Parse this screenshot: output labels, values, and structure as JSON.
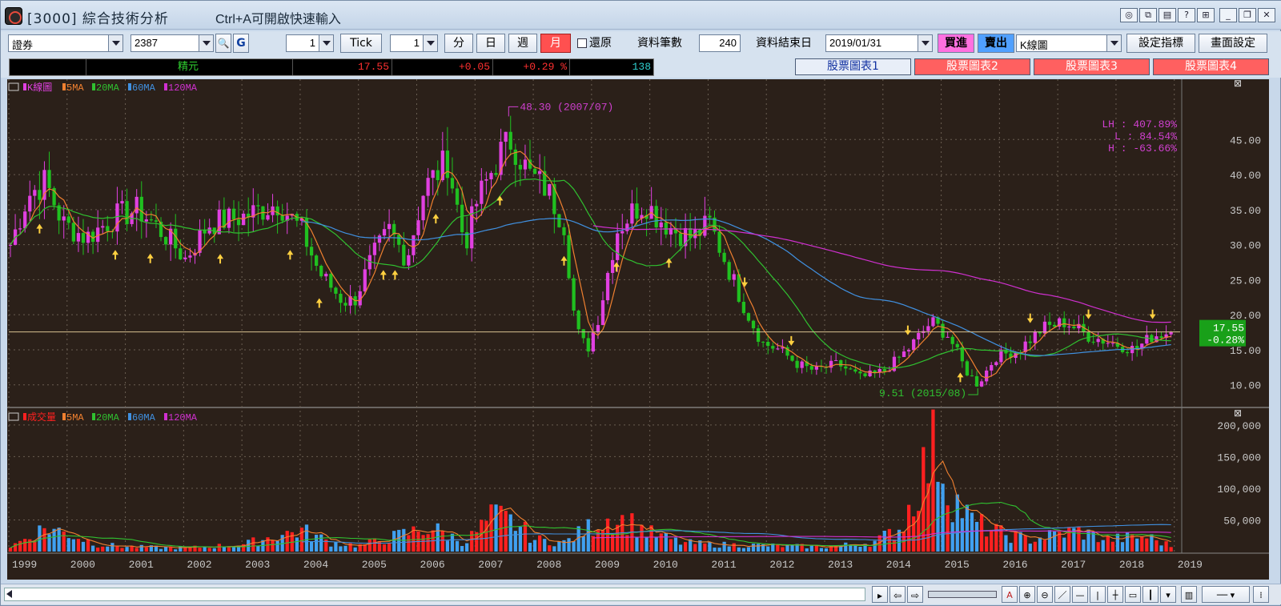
{
  "window": {
    "title": "[3000] 綜合技術分析",
    "hint": "Ctrl+A可開啟快速輸入"
  },
  "toolbar": {
    "market": "證券",
    "symbol": "2387",
    "tick_count": "1",
    "tick_label": "Tick",
    "period_count": "1",
    "periods": [
      "分",
      "日",
      "週",
      "月"
    ],
    "active_period": "月",
    "restore_label": "還原",
    "records_label": "資料筆數",
    "records_value": "240",
    "end_date_label": "資料結束日",
    "end_date_value": "2019/01/31",
    "buy_label": "買進",
    "sell_label": "賣出",
    "chart_type": "K線圖",
    "set_indicator_label": "設定指標",
    "screen_setting_label": "畫面設定"
  },
  "quote": {
    "name": "精元",
    "price": "17.55",
    "change": "+0.05",
    "change_pct": "+0.29 %",
    "volume": "138"
  },
  "tabs": [
    "股票圖表1",
    "股票圖表2",
    "股票圖表3",
    "股票圖表4"
  ],
  "active_tab": 0,
  "colors": {
    "up": "#e040e0",
    "down": "#20c020",
    "ma5": "#f08030",
    "ma20": "#30c030",
    "ma60": "#4090e0",
    "ma120": "#d030d0",
    "vol_up": "#ff2020",
    "vol_down": "#40a0f0",
    "bg": "#2b2019"
  },
  "chart_data": [
    {
      "type": "candlestick",
      "legend": [
        {
          "label": "K線圖",
          "color": "#e040e0"
        },
        {
          "label": "5MA",
          "color": "#f08030"
        },
        {
          "label": "20MA",
          "color": "#30c030"
        },
        {
          "label": "60MA",
          "color": "#4090e0"
        },
        {
          "label": "120MA",
          "color": "#d030d0"
        }
      ],
      "ylim": [
        7,
        52
      ],
      "yticks": [
        "45.00",
        "40.00",
        "35.00",
        "30.00",
        "25.00",
        "20.00",
        "15.00",
        "10.00"
      ],
      "ytick_values": [
        45,
        40,
        35,
        30,
        25,
        20,
        15,
        10
      ],
      "high_annotation": "48.30 (2007/07)",
      "low_annotation": "9.51 (2015/08)",
      "high_value": 48.3,
      "low_value": 9.51,
      "stats": [
        "LH : 407.89%",
        "L  :  84.54%",
        "H  : -63.66%"
      ],
      "current_price": "17.55",
      "current_change": "-0.28%",
      "current_value": 17.55,
      "x_start_year": 1999,
      "close_keypoints": [
        [
          1999.0,
          30
        ],
        [
          1999.3,
          37
        ],
        [
          1999.6,
          39
        ],
        [
          1999.9,
          33
        ],
        [
          2000.3,
          31
        ],
        [
          2000.8,
          34
        ],
        [
          2001.2,
          35
        ],
        [
          2001.7,
          31
        ],
        [
          2002.0,
          28
        ],
        [
          2002.4,
          33
        ],
        [
          2003.0,
          34
        ],
        [
          2003.6,
          36
        ],
        [
          2004.0,
          32
        ],
        [
          2004.3,
          26
        ],
        [
          2004.7,
          22
        ],
        [
          2004.9,
          22
        ],
        [
          2005.2,
          28
        ],
        [
          2005.5,
          32
        ],
        [
          2005.8,
          28
        ],
        [
          2006.1,
          38
        ],
        [
          2006.5,
          42
        ],
        [
          2006.8,
          30
        ],
        [
          2007.0,
          36
        ],
        [
          2007.4,
          43
        ],
        [
          2007.6,
          45
        ],
        [
          2007.9,
          40
        ],
        [
          2008.2,
          38
        ],
        [
          2008.5,
          33
        ],
        [
          2008.7,
          18
        ],
        [
          2008.9,
          15
        ],
        [
          2009.1,
          20
        ],
        [
          2009.4,
          32
        ],
        [
          2009.7,
          35
        ],
        [
          2009.9,
          36
        ],
        [
          2010.1,
          34
        ],
        [
          2010.4,
          32
        ],
        [
          2010.7,
          31
        ],
        [
          2011.0,
          33
        ],
        [
          2011.3,
          27
        ],
        [
          2011.6,
          21
        ],
        [
          2011.9,
          16
        ],
        [
          2012.2,
          15
        ],
        [
          2012.5,
          13
        ],
        [
          2012.8,
          12
        ],
        [
          2013.2,
          13
        ],
        [
          2013.6,
          11
        ],
        [
          2014.0,
          12
        ],
        [
          2014.4,
          15
        ],
        [
          2014.8,
          19
        ],
        [
          2015.1,
          17
        ],
        [
          2015.4,
          12
        ],
        [
          2015.6,
          10
        ],
        [
          2015.9,
          14
        ],
        [
          2016.3,
          15
        ],
        [
          2016.7,
          18
        ],
        [
          2017.1,
          19
        ],
        [
          2017.5,
          17
        ],
        [
          2017.9,
          16
        ],
        [
          2018.3,
          15
        ],
        [
          2018.6,
          17
        ],
        [
          2018.9,
          17.55
        ]
      ]
    },
    {
      "type": "bar",
      "legend": [
        {
          "label": "成交量",
          "color": "#ff2020"
        },
        {
          "label": "5MA",
          "color": "#f08030"
        },
        {
          "label": "20MA",
          "color": "#30c030"
        },
        {
          "label": "60MA",
          "color": "#4090e0"
        },
        {
          "label": "120MA",
          "color": "#d030d0"
        }
      ],
      "ylim": [
        0,
        210000
      ],
      "yticks": [
        "200,000",
        "150,000",
        "100,000",
        "50,000"
      ],
      "ytick_values": [
        200000,
        150000,
        100000,
        50000
      ],
      "volume_keypoints": [
        [
          1999.0,
          8000
        ],
        [
          1999.6,
          40000
        ],
        [
          2000.0,
          30000
        ],
        [
          2000.5,
          12000
        ],
        [
          2001.0,
          8000
        ],
        [
          2002.0,
          6000
        ],
        [
          2003.0,
          12000
        ],
        [
          2003.5,
          25000
        ],
        [
          2004.0,
          35000
        ],
        [
          2004.5,
          15000
        ],
        [
          2005.0,
          10000
        ],
        [
          2005.6,
          25000
        ],
        [
          2006.2,
          40000
        ],
        [
          2006.8,
          15000
        ],
        [
          2007.3,
          60000
        ],
        [
          2007.7,
          45000
        ],
        [
          2008.0,
          20000
        ],
        [
          2008.5,
          15000
        ],
        [
          2009.2,
          55000
        ],
        [
          2009.6,
          50000
        ],
        [
          2010.0,
          30000
        ],
        [
          2010.5,
          15000
        ],
        [
          2011.0,
          12000
        ],
        [
          2012.0,
          10000
        ],
        [
          2013.0,
          8000
        ],
        [
          2013.8,
          15000
        ],
        [
          2014.3,
          40000
        ],
        [
          2014.6,
          120000
        ],
        [
          2014.9,
          180000
        ],
        [
          2015.1,
          100000
        ],
        [
          2015.5,
          50000
        ],
        [
          2016.0,
          30000
        ],
        [
          2016.5,
          20000
        ],
        [
          2017.3,
          35000
        ],
        [
          2017.8,
          20000
        ],
        [
          2018.5,
          25000
        ],
        [
          2018.9,
          10000
        ]
      ]
    }
  ],
  "x_axis": {
    "years": [
      "1999",
      "2000",
      "2001",
      "2002",
      "2003",
      "2004",
      "2005",
      "2006",
      "2007",
      "2008",
      "2009",
      "2010",
      "2011",
      "2012",
      "2013",
      "2014",
      "2015",
      "2016",
      "2017",
      "2018",
      "2019"
    ]
  }
}
